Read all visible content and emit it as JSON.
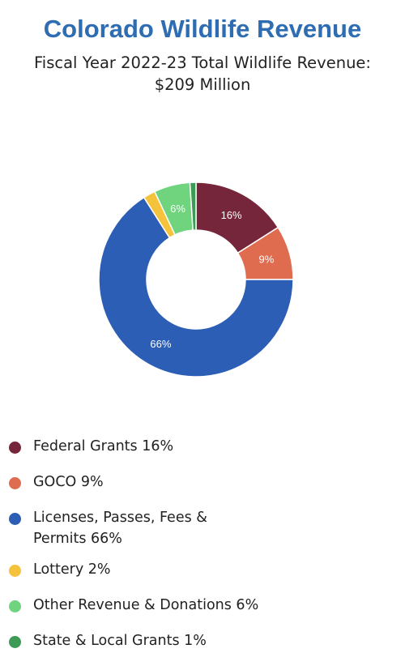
{
  "header": {
    "title": "Colorado Wildlife Revenue",
    "subtitle_line1": "Fiscal Year 2022-23 Total Wildlife Revenue:",
    "subtitle_line2": "$209 Million"
  },
  "chart_data": {
    "type": "pie",
    "variant": "donut",
    "title": "Colorado Wildlife Revenue",
    "subtitle": "Fiscal Year 2022-23 Total Wildlife Revenue: $209 Million",
    "legend_position": "bottom",
    "unit": "%",
    "slices": [
      {
        "name": "Federal Grants",
        "value": 16,
        "label": "16%",
        "legend": "Federal Grants 16%",
        "color": "#76263b",
        "show_label": true
      },
      {
        "name": "GOCO",
        "value": 9,
        "label": "9%",
        "legend": "GOCO 9%",
        "color": "#df6c4f",
        "show_label": true
      },
      {
        "name": "Licenses, Passes, Fees & Permits",
        "value": 66,
        "label": "66%",
        "legend": "Licenses, Passes, Fees & Permits 66%",
        "color": "#2c5eb5",
        "show_label": true
      },
      {
        "name": "Lottery",
        "value": 2,
        "label": "2%",
        "legend": "Lottery 2%",
        "color": "#f5c33b",
        "show_label": false
      },
      {
        "name": "Other Revenue & Donations",
        "value": 6,
        "label": "6%",
        "legend": "Other Revenue & Donations 6%",
        "color": "#6fd47d",
        "show_label": true
      },
      {
        "name": "State & Local Grants",
        "value": 1,
        "label": "1%",
        "legend": "State & Local Grants 1%",
        "color": "#3e9b57",
        "show_label": false
      }
    ]
  }
}
